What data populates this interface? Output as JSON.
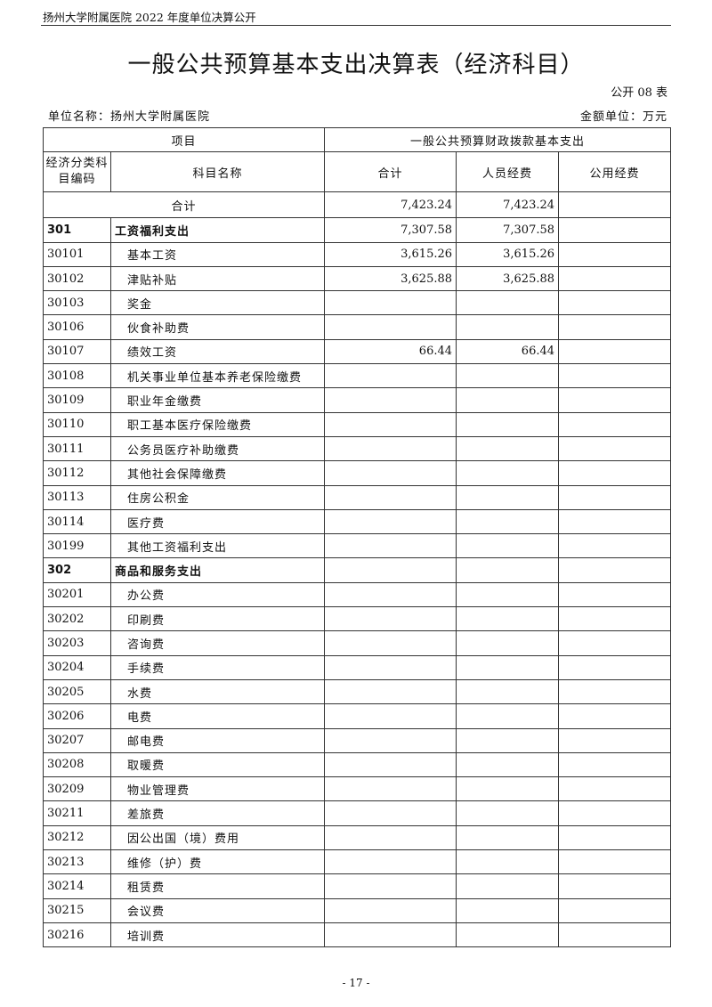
{
  "running_header": "扬州大学附属医院 2022 年度单位决算公开",
  "title": "一般公共预算基本支出决算表（经济科目）",
  "form_no": "公开 08 表",
  "unit_name": "单位名称：扬州大学附属医院",
  "money_unit": "金额单位：万元",
  "table": {
    "header_item": "项目",
    "header_group": "一般公共预算财政拨款基本支出",
    "col_code": "经济分类科目编码",
    "col_name": "科目名称",
    "col_total": "合计",
    "col_personnel": "人员经费",
    "col_public": "公用经费",
    "total_label": "合计",
    "total_values": [
      "7,423.24",
      "7,423.24",
      ""
    ],
    "rows": [
      {
        "code": "301",
        "name": "工资福利支出",
        "total": "7,307.58",
        "personnel": "7,307.58",
        "public": "",
        "bold": true
      },
      {
        "code": "30101",
        "name": "基本工资",
        "total": "3,615.26",
        "personnel": "3,615.26",
        "public": ""
      },
      {
        "code": "30102",
        "name": "津贴补贴",
        "total": "3,625.88",
        "personnel": "3,625.88",
        "public": ""
      },
      {
        "code": "30103",
        "name": "奖金",
        "total": "",
        "personnel": "",
        "public": ""
      },
      {
        "code": "30106",
        "name": "伙食补助费",
        "total": "",
        "personnel": "",
        "public": ""
      },
      {
        "code": "30107",
        "name": "绩效工资",
        "total": "66.44",
        "personnel": "66.44",
        "public": ""
      },
      {
        "code": "30108",
        "name": "机关事业单位基本养老保险缴费",
        "total": "",
        "personnel": "",
        "public": ""
      },
      {
        "code": "30109",
        "name": "职业年金缴费",
        "total": "",
        "personnel": "",
        "public": ""
      },
      {
        "code": "30110",
        "name": "职工基本医疗保险缴费",
        "total": "",
        "personnel": "",
        "public": ""
      },
      {
        "code": "30111",
        "name": "公务员医疗补助缴费",
        "total": "",
        "personnel": "",
        "public": ""
      },
      {
        "code": "30112",
        "name": "其他社会保障缴费",
        "total": "",
        "personnel": "",
        "public": ""
      },
      {
        "code": "30113",
        "name": "住房公积金",
        "total": "",
        "personnel": "",
        "public": ""
      },
      {
        "code": "30114",
        "name": "医疗费",
        "total": "",
        "personnel": "",
        "public": ""
      },
      {
        "code": "30199",
        "name": "其他工资福利支出",
        "total": "",
        "personnel": "",
        "public": ""
      },
      {
        "code": "302",
        "name": "商品和服务支出",
        "total": "",
        "personnel": "",
        "public": "",
        "bold": true
      },
      {
        "code": "30201",
        "name": "办公费",
        "total": "",
        "personnel": "",
        "public": ""
      },
      {
        "code": "30202",
        "name": "印刷费",
        "total": "",
        "personnel": "",
        "public": ""
      },
      {
        "code": "30203",
        "name": "咨询费",
        "total": "",
        "personnel": "",
        "public": ""
      },
      {
        "code": "30204",
        "name": "手续费",
        "total": "",
        "personnel": "",
        "public": ""
      },
      {
        "code": "30205",
        "name": "水费",
        "total": "",
        "personnel": "",
        "public": ""
      },
      {
        "code": "30206",
        "name": "电费",
        "total": "",
        "personnel": "",
        "public": ""
      },
      {
        "code": "30207",
        "name": "邮电费",
        "total": "",
        "personnel": "",
        "public": ""
      },
      {
        "code": "30208",
        "name": "取暖费",
        "total": "",
        "personnel": "",
        "public": ""
      },
      {
        "code": "30209",
        "name": "物业管理费",
        "total": "",
        "personnel": "",
        "public": ""
      },
      {
        "code": "30211",
        "name": "差旅费",
        "total": "",
        "personnel": "",
        "public": ""
      },
      {
        "code": "30212",
        "name": "因公出国（境）费用",
        "total": "",
        "personnel": "",
        "public": ""
      },
      {
        "code": "30213",
        "name": "维修（护）费",
        "total": "",
        "personnel": "",
        "public": ""
      },
      {
        "code": "30214",
        "name": "租赁费",
        "total": "",
        "personnel": "",
        "public": ""
      },
      {
        "code": "30215",
        "name": "会议费",
        "total": "",
        "personnel": "",
        "public": ""
      },
      {
        "code": "30216",
        "name": "培训费",
        "total": "",
        "personnel": "",
        "public": ""
      }
    ]
  },
  "page_number": "- 17 -"
}
